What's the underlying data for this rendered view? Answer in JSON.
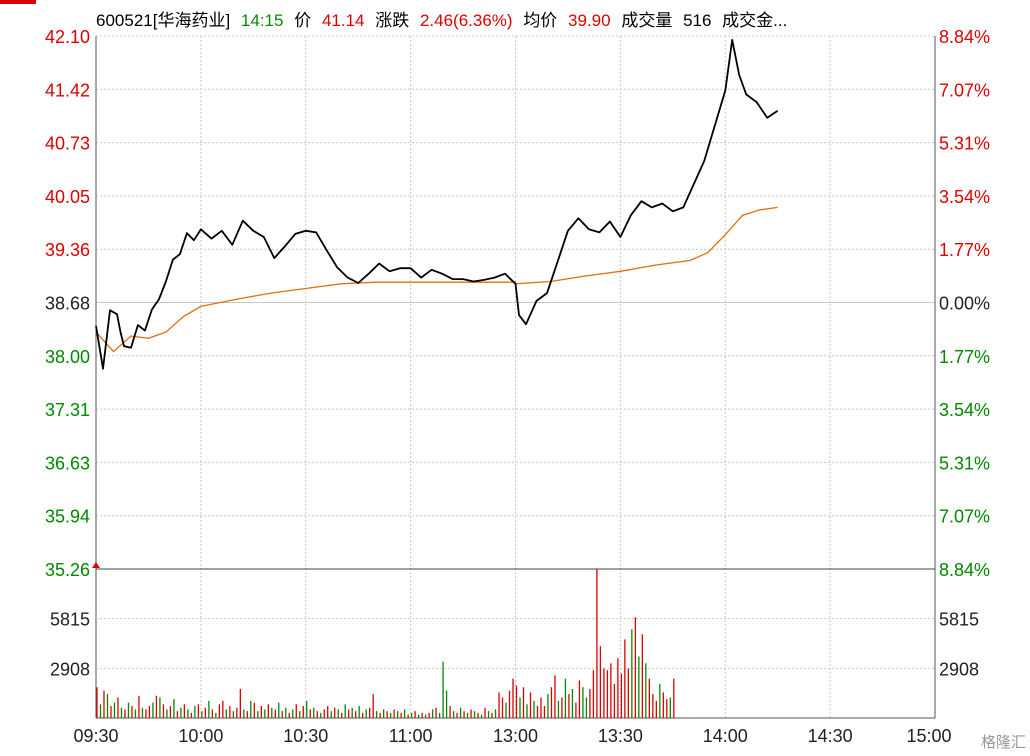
{
  "header": {
    "code_name": "600521[华海药业]",
    "time": "14:15",
    "price_label": "价",
    "price": "41.14",
    "change_label": "涨跌",
    "change": "2.46(6.36%)",
    "avg_label": "均价",
    "avg": "39.90",
    "volume_label": "成交量",
    "volume": "516",
    "turnover_label": "成交金..."
  },
  "watermark": "格隆汇",
  "colors": {
    "up": "#dd0000",
    "down": "#008800",
    "price_line": "#000000",
    "avg_line": "#e07010",
    "grid": "#c8c8c8",
    "axis": "#555555"
  },
  "chart_data": {
    "type": "line",
    "prev_close": 38.68,
    "price_axis": {
      "min": 35.26,
      "max": 42.1,
      "ticks": [
        "42.10",
        "41.42",
        "40.73",
        "40.05",
        "39.36",
        "38.68",
        "38.00",
        "37.31",
        "36.63",
        "35.94",
        "35.26"
      ],
      "pct_ticks": [
        "8.84%",
        "7.07%",
        "5.31%",
        "3.54%",
        "1.77%",
        "0.00%",
        "1.77%",
        "3.54%",
        "5.31%",
        "7.07%",
        "8.84%"
      ]
    },
    "volume_axis": {
      "max": 8722,
      "ticks": [
        "5815",
        "2908"
      ]
    },
    "time_ticks": [
      "09:30",
      "10:00",
      "10:30",
      "11:00",
      "13:00",
      "13:30",
      "14:00",
      "14:30",
      "15:00"
    ],
    "price": [
      [
        "09:30",
        38.38
      ],
      [
        "09:32",
        37.83
      ],
      [
        "09:34",
        38.58
      ],
      [
        "09:36",
        38.53
      ],
      [
        "09:37",
        38.3
      ],
      [
        "09:38",
        38.12
      ],
      [
        "09:40",
        38.1
      ],
      [
        "09:42",
        38.39
      ],
      [
        "09:44",
        38.32
      ],
      [
        "09:46",
        38.59
      ],
      [
        "09:48",
        38.72
      ],
      [
        "09:50",
        38.95
      ],
      [
        "09:52",
        39.23
      ],
      [
        "09:54",
        39.3
      ],
      [
        "09:56",
        39.57
      ],
      [
        "09:58",
        39.48
      ],
      [
        "10:00",
        39.62
      ],
      [
        "10:03",
        39.5
      ],
      [
        "10:06",
        39.6
      ],
      [
        "10:09",
        39.42
      ],
      [
        "10:12",
        39.73
      ],
      [
        "10:15",
        39.6
      ],
      [
        "10:18",
        39.52
      ],
      [
        "10:21",
        39.25
      ],
      [
        "10:24",
        39.4
      ],
      [
        "10:27",
        39.56
      ],
      [
        "10:30",
        39.6
      ],
      [
        "10:33",
        39.58
      ],
      [
        "10:36",
        39.35
      ],
      [
        "10:39",
        39.13
      ],
      [
        "10:42",
        39.0
      ],
      [
        "10:45",
        38.93
      ],
      [
        "10:48",
        39.05
      ],
      [
        "10:51",
        39.18
      ],
      [
        "10:54",
        39.08
      ],
      [
        "10:57",
        39.12
      ],
      [
        "11:00",
        39.12
      ],
      [
        "11:03",
        39.0
      ],
      [
        "11:06",
        39.1
      ],
      [
        "11:09",
        39.05
      ],
      [
        "11:12",
        38.98
      ],
      [
        "11:15",
        38.98
      ],
      [
        "11:18",
        38.95
      ],
      [
        "11:21",
        38.97
      ],
      [
        "11:24",
        39.0
      ],
      [
        "11:27",
        39.05
      ],
      [
        "11:30",
        38.92
      ],
      [
        "13:01",
        38.52
      ],
      [
        "13:03",
        38.4
      ],
      [
        "13:06",
        38.7
      ],
      [
        "13:09",
        38.8
      ],
      [
        "13:12",
        39.2
      ],
      [
        "13:15",
        39.6
      ],
      [
        "13:18",
        39.76
      ],
      [
        "13:21",
        39.62
      ],
      [
        "13:24",
        39.58
      ],
      [
        "13:27",
        39.72
      ],
      [
        "13:30",
        39.52
      ],
      [
        "13:33",
        39.8
      ],
      [
        "13:36",
        39.98
      ],
      [
        "13:39",
        39.9
      ],
      [
        "13:42",
        39.95
      ],
      [
        "13:45",
        39.85
      ],
      [
        "13:48",
        39.9
      ],
      [
        "13:51",
        40.2
      ],
      [
        "13:54",
        40.5
      ],
      [
        "13:57",
        40.95
      ],
      [
        "14:00",
        41.4
      ],
      [
        "14:02",
        42.05
      ],
      [
        "14:04",
        41.6
      ],
      [
        "14:06",
        41.35
      ],
      [
        "14:09",
        41.25
      ],
      [
        "14:12",
        41.05
      ],
      [
        "14:15",
        41.14
      ]
    ],
    "avg": [
      [
        "09:30",
        38.3
      ],
      [
        "09:35",
        38.05
      ],
      [
        "09:40",
        38.25
      ],
      [
        "09:45",
        38.22
      ],
      [
        "09:50",
        38.3
      ],
      [
        "09:55",
        38.5
      ],
      [
        "10:00",
        38.63
      ],
      [
        "10:10",
        38.72
      ],
      [
        "10:20",
        38.8
      ],
      [
        "10:30",
        38.86
      ],
      [
        "10:40",
        38.92
      ],
      [
        "10:50",
        38.94
      ],
      [
        "11:00",
        38.94
      ],
      [
        "11:10",
        38.94
      ],
      [
        "11:20",
        38.94
      ],
      [
        "11:30",
        38.94
      ],
      [
        "13:00",
        38.92
      ],
      [
        "13:10",
        38.95
      ],
      [
        "13:20",
        39.02
      ],
      [
        "13:30",
        39.08
      ],
      [
        "13:40",
        39.16
      ],
      [
        "13:50",
        39.22
      ],
      [
        "13:55",
        39.32
      ],
      [
        "14:00",
        39.55
      ],
      [
        "14:05",
        39.8
      ],
      [
        "14:10",
        39.87
      ],
      [
        "14:15",
        39.9
      ]
    ],
    "volume": [
      [
        1800,
        1
      ],
      [
        800,
        0
      ],
      [
        1600,
        1
      ],
      [
        1400,
        0
      ],
      [
        700,
        1
      ],
      [
        900,
        0
      ],
      [
        1200,
        1
      ],
      [
        600,
        0
      ],
      [
        500,
        1
      ],
      [
        900,
        0
      ],
      [
        700,
        1
      ],
      [
        500,
        0
      ],
      [
        1300,
        1
      ],
      [
        600,
        0
      ],
      [
        500,
        1
      ],
      [
        700,
        1
      ],
      [
        900,
        0
      ],
      [
        1300,
        1
      ],
      [
        1200,
        0
      ],
      [
        800,
        1
      ],
      [
        500,
        0
      ],
      [
        700,
        1
      ],
      [
        1100,
        0
      ],
      [
        400,
        1
      ],
      [
        600,
        0
      ],
      [
        800,
        1
      ],
      [
        500,
        0
      ],
      [
        300,
        1
      ],
      [
        700,
        0
      ],
      [
        800,
        1
      ],
      [
        400,
        0
      ],
      [
        600,
        1
      ],
      [
        1000,
        0
      ],
      [
        500,
        1
      ],
      [
        300,
        0
      ],
      [
        800,
        1
      ],
      [
        1000,
        1
      ],
      [
        500,
        0
      ],
      [
        700,
        1
      ],
      [
        400,
        0
      ],
      [
        600,
        1
      ],
      [
        1700,
        1
      ],
      [
        500,
        0
      ],
      [
        400,
        1
      ],
      [
        1000,
        0
      ],
      [
        900,
        1
      ],
      [
        400,
        0
      ],
      [
        700,
        1
      ],
      [
        500,
        0
      ],
      [
        800,
        1
      ],
      [
        600,
        0
      ],
      [
        500,
        1
      ],
      [
        900,
        0
      ],
      [
        400,
        1
      ],
      [
        600,
        0
      ],
      [
        300,
        1
      ],
      [
        500,
        0
      ],
      [
        800,
        1
      ],
      [
        400,
        0
      ],
      [
        700,
        1
      ],
      [
        1000,
        0
      ],
      [
        500,
        1
      ],
      [
        600,
        0
      ],
      [
        400,
        1
      ],
      [
        300,
        0
      ],
      [
        500,
        1
      ],
      [
        700,
        1
      ],
      [
        400,
        0
      ],
      [
        600,
        1
      ],
      [
        500,
        0
      ],
      [
        300,
        1
      ],
      [
        800,
        0
      ],
      [
        500,
        1
      ],
      [
        600,
        0
      ],
      [
        400,
        1
      ],
      [
        700,
        0
      ],
      [
        300,
        1
      ],
      [
        500,
        0
      ],
      [
        600,
        1
      ],
      [
        1400,
        1
      ],
      [
        400,
        0
      ],
      [
        300,
        1
      ],
      [
        500,
        0
      ],
      [
        400,
        1
      ],
      [
        300,
        0
      ],
      [
        500,
        1
      ],
      [
        400,
        0
      ],
      [
        300,
        1
      ],
      [
        500,
        0
      ],
      [
        200,
        1
      ],
      [
        300,
        0
      ],
      [
        400,
        1
      ],
      [
        200,
        0
      ],
      [
        300,
        1
      ],
      [
        200,
        0
      ],
      [
        300,
        1
      ],
      [
        500,
        0
      ],
      [
        600,
        1
      ],
      [
        300,
        0
      ],
      [
        3300,
        0
      ],
      [
        1600,
        0
      ],
      [
        700,
        1
      ],
      [
        400,
        0
      ],
      [
        300,
        1
      ],
      [
        600,
        0
      ],
      [
        400,
        1
      ],
      [
        300,
        0
      ],
      [
        500,
        1
      ],
      [
        400,
        0
      ],
      [
        300,
        1
      ],
      [
        200,
        0
      ],
      [
        600,
        1
      ],
      [
        400,
        0
      ],
      [
        300,
        1
      ],
      [
        500,
        0
      ],
      [
        1500,
        1
      ],
      [
        1200,
        1
      ],
      [
        900,
        0
      ],
      [
        1600,
        1
      ],
      [
        2300,
        1
      ],
      [
        1900,
        1
      ],
      [
        1200,
        0
      ],
      [
        1800,
        1
      ],
      [
        800,
        0
      ],
      [
        1500,
        1
      ],
      [
        1000,
        0
      ],
      [
        700,
        1
      ],
      [
        1200,
        1
      ],
      [
        700,
        1
      ],
      [
        1400,
        0
      ],
      [
        1800,
        1
      ],
      [
        2500,
        1
      ],
      [
        1000,
        0
      ],
      [
        1200,
        1
      ],
      [
        2300,
        0
      ],
      [
        1400,
        1
      ],
      [
        1700,
        0
      ],
      [
        900,
        1
      ],
      [
        2200,
        1
      ],
      [
        1800,
        0
      ],
      [
        1200,
        0
      ],
      [
        1700,
        1
      ],
      [
        2800,
        1
      ],
      [
        8722,
        1
      ],
      [
        4200,
        1
      ],
      [
        2900,
        1
      ],
      [
        2800,
        1
      ],
      [
        3200,
        1
      ],
      [
        2000,
        1
      ],
      [
        3500,
        1
      ],
      [
        2600,
        1
      ],
      [
        4600,
        1
      ],
      [
        2900,
        1
      ],
      [
        5200,
        0
      ],
      [
        5900,
        1
      ],
      [
        3600,
        0
      ],
      [
        4900,
        1
      ],
      [
        3200,
        0
      ],
      [
        2300,
        1
      ],
      [
        1400,
        1
      ],
      [
        1000,
        1
      ],
      [
        2000,
        0
      ],
      [
        1500,
        1
      ],
      [
        1100,
        1
      ],
      [
        1200,
        0
      ],
      [
        2300,
        1
      ]
    ]
  }
}
